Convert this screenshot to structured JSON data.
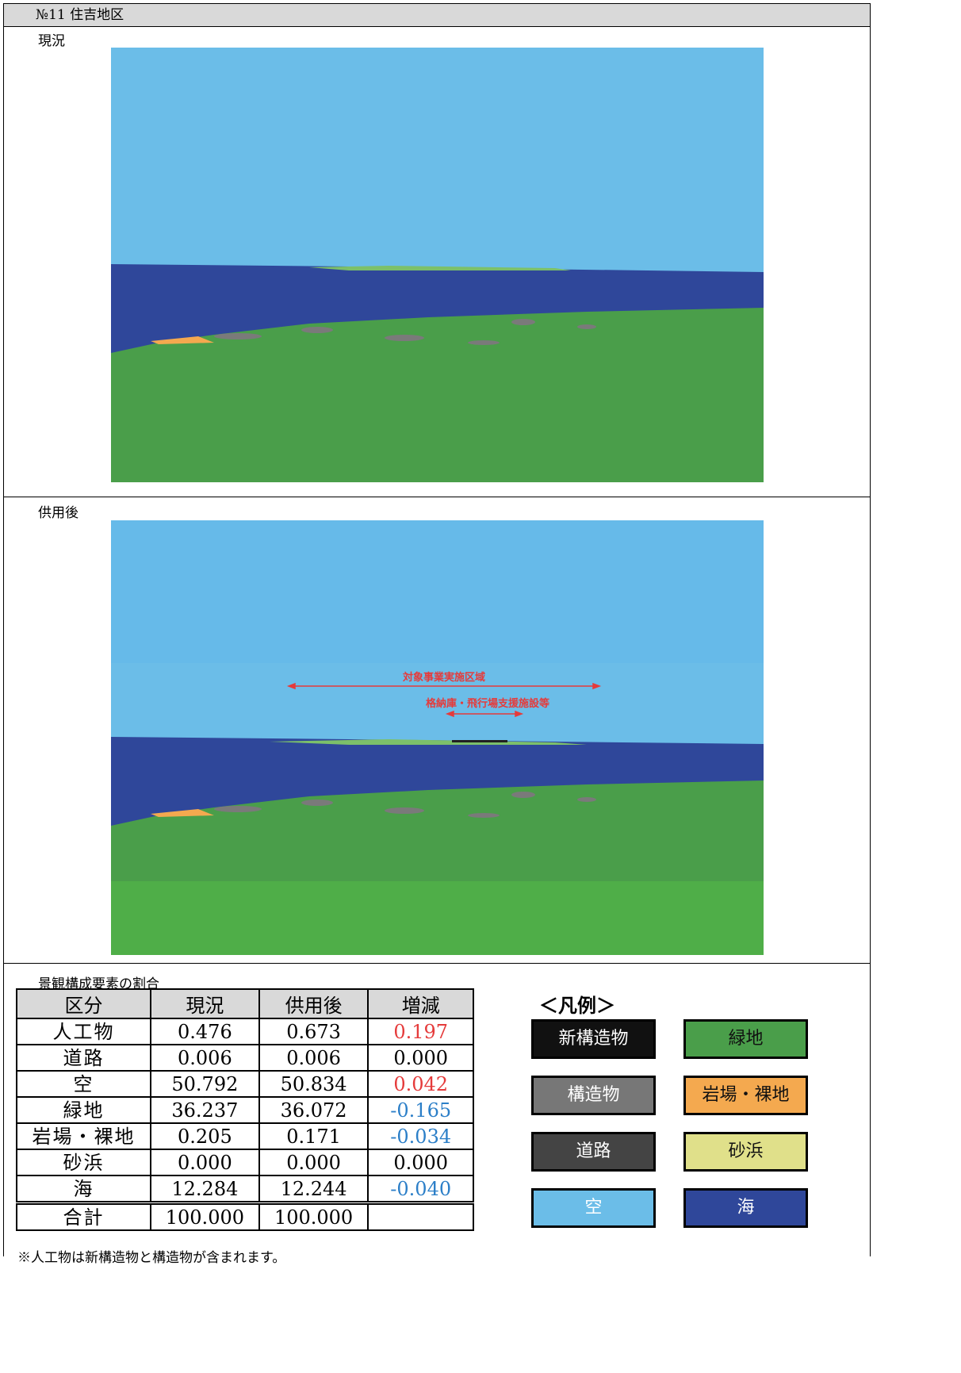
{
  "header": {
    "title": "№11 住吉地区"
  },
  "current": {
    "label": "現況"
  },
  "after": {
    "label": "供用後",
    "annotations": [
      "対象事業実施区域",
      "格納庫・飛行場支援施設等"
    ]
  },
  "table": {
    "caption": "景観構成要素の割合",
    "columns": [
      "区分",
      "現況",
      "供用後",
      "増減"
    ],
    "rows": [
      [
        "人工物",
        "0.476",
        "0.673",
        "0.197"
      ],
      [
        "道路",
        "0.006",
        "0.006",
        "0.000"
      ],
      [
        "空",
        "50.792",
        "50.834",
        "0.042"
      ],
      [
        "緑地",
        "36.237",
        "36.072",
        "-0.165"
      ],
      [
        "岩場・裸地",
        "0.205",
        "0.171",
        "-0.034"
      ],
      [
        "砂浜",
        "0.000",
        "0.000",
        "0.000"
      ],
      [
        "海",
        "12.284",
        "12.244",
        "-0.040"
      ],
      [
        "合計",
        "100.000",
        "100.000"
      ]
    ]
  },
  "legend": {
    "title": "＜凡例＞",
    "items": [
      "新構造物",
      "緑地",
      "構造物",
      "岩場・裸地",
      "道路",
      "砂浜",
      "空",
      "海"
    ]
  },
  "footnote": "※人工物は新構造物と構造物が含まれます。"
}
